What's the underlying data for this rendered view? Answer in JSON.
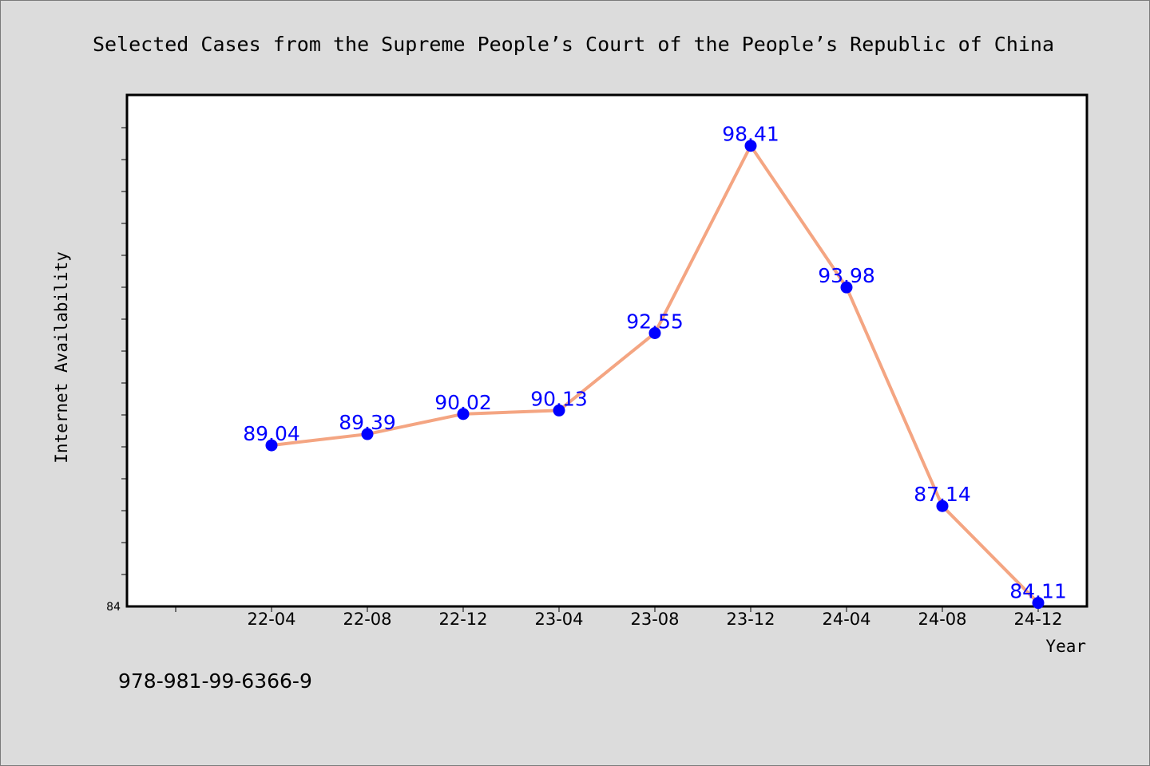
{
  "chart_data": {
    "type": "line",
    "title": "Selected Cases from the Supreme People’s Court of the People’s Republic of China",
    "xlabel": "Year",
    "ylabel": "Internet Availability",
    "categories": [
      "22-04",
      "22-08",
      "22-12",
      "23-04",
      "23-08",
      "23-12",
      "24-04",
      "24-08",
      "24-12"
    ],
    "series": [
      {
        "values": [
          89.04,
          89.39,
          90.02,
          90.13,
          92.55,
          98.41,
          93.98,
          87.14,
          84.11
        ],
        "labels": [
          "89.04",
          "89.39",
          "90.02",
          "90.13",
          "92.55",
          "98.41",
          "93.98",
          "87.14",
          "84.11"
        ]
      }
    ],
    "y_tick_labels": [
      "84"
    ],
    "ylim": [
      84,
      100
    ],
    "grid": false,
    "line_color": "#f4a582",
    "marker_color": "#0000ff",
    "label_color": "#0000ff"
  },
  "footer": {
    "text": "978-981-99-6366-9"
  }
}
